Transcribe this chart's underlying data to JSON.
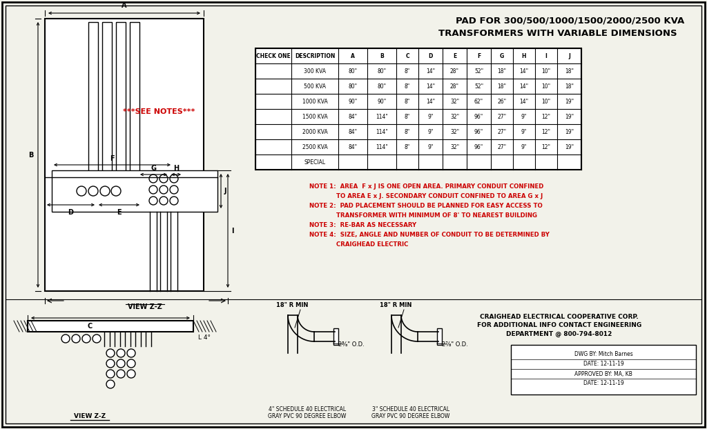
{
  "title_line1": "PAD FOR 300/500/1000/1500/2000/2500 KVA",
  "title_line2": "TRANSFORMERS WITH VARIABLE DIMENSIONS",
  "table_headers": [
    "CHECK ONE",
    "DESCRIPTION",
    "A",
    "B",
    "C",
    "D",
    "E",
    "F",
    "G",
    "H",
    "I",
    "J"
  ],
  "table_rows": [
    [
      "",
      "300 KVA",
      "80\"",
      "80\"",
      "8\"",
      "14\"",
      "28\"",
      "52\"",
      "18\"",
      "14\"",
      "10\"",
      "18\""
    ],
    [
      "",
      "500 KVA",
      "80\"",
      "80\"",
      "8\"",
      "14\"",
      "28\"",
      "52\"",
      "18\"",
      "14\"",
      "10\"",
      "18\""
    ],
    [
      "",
      "1000 KVA",
      "90\"",
      "90\"",
      "8\"",
      "14\"",
      "32\"",
      "62\"",
      "26\"",
      "14\"",
      "10\"",
      "19\""
    ],
    [
      "",
      "1500 KVA",
      "84\"",
      "114\"",
      "8\"",
      "9\"",
      "32\"",
      "96\"",
      "27\"",
      "9\"",
      "12\"",
      "19\""
    ],
    [
      "",
      "2000 KVA",
      "84\"",
      "114\"",
      "8\"",
      "9\"",
      "32\"",
      "96\"",
      "27\"",
      "9\"",
      "12\"",
      "19\""
    ],
    [
      "",
      "2500 KVA",
      "84\"",
      "114\"",
      "8\"",
      "9\"",
      "32\"",
      "96\"",
      "27\"",
      "9\"",
      "12\"",
      "19\""
    ],
    [
      "",
      "SPECIAL",
      "",
      "",
      "",
      "",
      "",
      "",
      "",
      "",
      "",
      ""
    ]
  ],
  "note1a": "NOTE 1:  AREA  F x J IS ONE OPEN AREA. PRIMARY CONDUIT CONFINED",
  "note1b": "             TO AREA E x J. SECONDARY CONDUIT CONFINED TO AREA G x J",
  "note2a": "NOTE 2:  PAD PLACEMENT SHOULD BE PLANNED FOR EASY ACCESS TO",
  "note2b": "             TRANSFORMER WITH MINIMUM OF 8' TO NEAREST BUILDING",
  "note3": "NOTE 3:  RE-BAR AS NECESSARY",
  "note4a": "NOTE 4:  SIZE, ANGLE AND NUMBER OF CONDUIT TO BE DETERMINED BY",
  "note4b": "             CRAIGHEAD ELECTRIC",
  "see_notes_text": "***SEE NOTES***",
  "view_label": "VIEW Z-Z",
  "company_line1": "CRAIGHEAD ELECTRICAL COOPERATIVE CORP.",
  "company_line2": "FOR ADDITIONAL INFO CONTACT ENGINEERING",
  "company_line3": "DEPARTMENT @ 800-794-8012",
  "dwg_by": "DWG BY: Mitch Barnes",
  "date1": "DATE: 12-11-19",
  "approved": "APPROVED BY: MA, KB",
  "date2": "DATE: 12-11-19",
  "elbow_label1a": "4\" SCHEDULE 40 ELECTRICAL",
  "elbow_label1b": "GRAY PVC 90 DEGREE ELBOW",
  "elbow_label2a": "3\" SCHEDULE 40 ELECTRICAL",
  "elbow_label2b": "GRAY PVC 90 DEGREE ELBOW",
  "r_min": "18\" R MIN",
  "od1": "2⅝\" O.D.",
  "od2": "2⅞\" O.D.",
  "bg_color": "#f2f2ea",
  "border_color": "#000000",
  "red_color": "#cc0000"
}
